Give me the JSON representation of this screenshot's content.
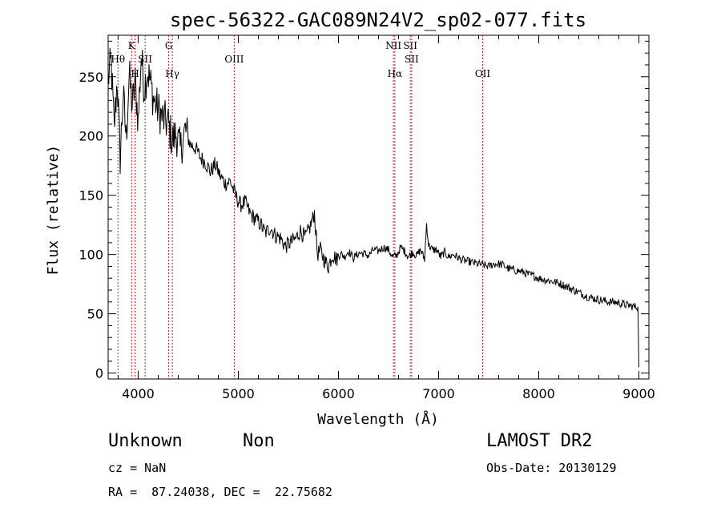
{
  "chart_data": {
    "type": "line",
    "title": "spec-56322-GAC089N24V2_sp02-077.fits",
    "xlabel": "Wavelength (Å)",
    "ylabel": "Flux (relative)",
    "xlim": [
      3700,
      9100
    ],
    "ylim": [
      -5,
      285
    ],
    "xticks": [
      4000,
      5000,
      6000,
      7000,
      8000,
      9000
    ],
    "yticks": [
      0,
      50,
      100,
      150,
      200,
      250
    ],
    "grid": false,
    "legend": "none",
    "series": [
      {
        "color": "#000000",
        "x": [
          3700,
          3730,
          3760,
          3790,
          3820,
          3850,
          3880,
          3910,
          3940,
          3970,
          4000,
          4030,
          4060,
          4090,
          4120,
          4150,
          4200,
          4250,
          4300,
          4340,
          4380,
          4420,
          4470,
          4520,
          4570,
          4620,
          4670,
          4720,
          4770,
          4820,
          4870,
          4920,
          4970,
          5020,
          5070,
          5120,
          5170,
          5220,
          5270,
          5320,
          5370,
          5420,
          5470,
          5520,
          5570,
          5620,
          5670,
          5720,
          5760,
          5790,
          5820,
          5860,
          5900,
          5940,
          5980,
          6020,
          6060,
          6100,
          6150,
          6200,
          6250,
          6300,
          6350,
          6400,
          6450,
          6500,
          6540,
          6580,
          6620,
          6660,
          6700,
          6740,
          6780,
          6820,
          6860,
          6880,
          6900,
          6940,
          6980,
          7020,
          7060,
          7100,
          7150,
          7200,
          7250,
          7300,
          7350,
          7400,
          7450,
          7500,
          7550,
          7600,
          7650,
          7700,
          7750,
          7800,
          7850,
          7900,
          7950,
          8000,
          8050,
          8100,
          8150,
          8200,
          8250,
          8300,
          8350,
          8400,
          8450,
          8500,
          8550,
          8600,
          8650,
          8700,
          8750,
          8800,
          8850,
          8900,
          8950,
          8990
        ],
        "y": [
          248,
          262,
          205,
          248,
          182,
          235,
          198,
          252,
          225,
          245,
          212,
          268,
          240,
          255,
          246,
          232,
          222,
          214,
          210,
          196,
          202,
          188,
          205,
          193,
          190,
          182,
          178,
          170,
          176,
          166,
          160,
          162,
          150,
          142,
          144,
          134,
          130,
          126,
          118,
          123,
          116,
          114,
          107,
          110,
          113,
          120,
          114,
          124,
          135,
          100,
          104,
          95,
          90,
          100,
          96,
          101,
          98,
          103,
          97,
          101,
          101,
          99,
          104,
          103,
          106,
          104,
          98,
          99,
          106,
          103,
          98,
          102,
          99,
          104,
          96,
          126,
          108,
          104,
          104,
          98,
          102,
          98,
          100,
          97,
          95,
          94,
          93,
          92,
          91,
          90,
          92,
          92,
          91,
          88,
          87,
          86,
          85,
          83,
          82,
          80,
          79,
          78,
          77,
          76,
          74,
          72,
          70,
          68,
          66,
          64,
          63,
          62,
          61,
          60,
          60,
          59,
          58,
          57,
          56,
          56
        ]
      }
    ],
    "lines": [
      {
        "label": "Hθ",
        "x": 3798,
        "row": 1
      },
      {
        "label": "K",
        "x": 3934,
        "row": 0
      },
      {
        "label": "H",
        "x": 3969,
        "row": 2
      },
      {
        "label": "SII",
        "x": 4069,
        "row": 1
      },
      {
        "label": "G",
        "x": 4305,
        "row": 0
      },
      {
        "label": "Hγ",
        "x": 4341,
        "row": 2
      },
      {
        "label": "OIII",
        "x": 4959,
        "row": 1
      },
      {
        "label": "NII",
        "x": 6549,
        "row": 0
      },
      {
        "label": "Hα",
        "x": 6563,
        "row": 2
      },
      {
        "label": "SII",
        "x": 6717,
        "row": 0
      },
      {
        "label": "SII",
        "x": 6731,
        "row": 1
      },
      {
        "label": "OII",
        "x": 7440,
        "row": 2
      }
    ],
    "line_color": "#b22222"
  },
  "info": {
    "class_label": "Unknown",
    "subclass_label": "Non",
    "survey": "LAMOST DR2",
    "cz": "cz = NaN",
    "obs_date": "Obs-Date: 20130129",
    "coords": "RA =  87.24038, DEC =  22.75682"
  }
}
